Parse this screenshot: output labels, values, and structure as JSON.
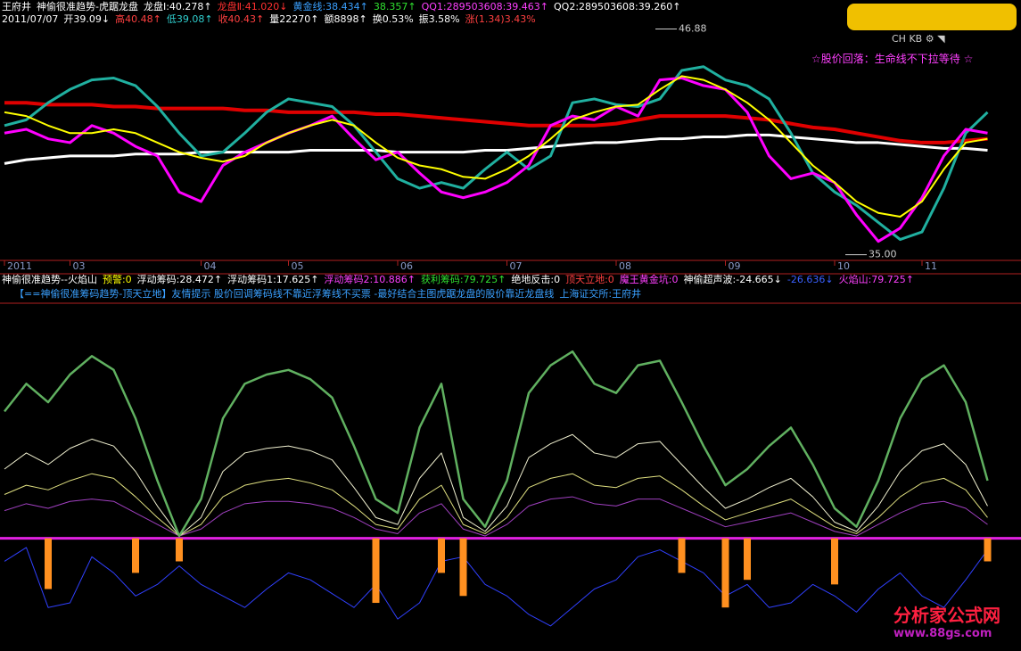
{
  "header": {
    "line1": [
      {
        "text": "王府井",
        "color": "#ffffff"
      },
      {
        "text": "神偷很准趋势-虎踞龙盘",
        "color": "#ffffff"
      },
      {
        "text": "龙盘Ⅰ:40.278↑",
        "color": "#ffffff"
      },
      {
        "text": "龙盘Ⅱ:41.020↓",
        "color": "#ff3030"
      },
      {
        "text": "黄金线:38.434↑",
        "color": "#3aa0ff"
      },
      {
        "text": "38.357↑",
        "color": "#30e030"
      },
      {
        "text": "QQ1:289503608:39.463↑",
        "color": "#ff40ff"
      },
      {
        "text": "QQ2:289503608:39.260↑",
        "color": "#ffffff"
      }
    ],
    "line2": [
      {
        "text": "2011/07/07",
        "color": "#ffffff"
      },
      {
        "text": "开39.09↓",
        "color": "#ffffff"
      },
      {
        "text": "高40.48↑",
        "color": "#ff4040"
      },
      {
        "text": "低39.08↑",
        "color": "#30d0d0"
      },
      {
        "text": "收40.43↑",
        "color": "#ff4040"
      },
      {
        "text": "量22270↑",
        "color": "#ffffff"
      },
      {
        "text": "额8898↑",
        "color": "#ffffff"
      },
      {
        "text": "换0.53%",
        "color": "#ffffff"
      },
      {
        "text": "振3.58%",
        "color": "#ffffff"
      },
      {
        "text": "涨(1.34)3.43%",
        "color": "#ff4040"
      }
    ],
    "main_note": "☆股价回落：生命线不下拉等待 ☆"
  },
  "indicator_header": [
    {
      "text": "神偷很准趋势--火焰山",
      "color": "#ffffff"
    },
    {
      "text": "预警:0",
      "color": "#ffff00"
    },
    {
      "text": "浮动筹码:28.472↑",
      "color": "#ffffff"
    },
    {
      "text": "浮动筹码1:17.625↑",
      "color": "#ffffff"
    },
    {
      "text": "浮动筹码2:10.886↑",
      "color": "#ff40ff"
    },
    {
      "text": "获利筹码:79.725↑",
      "color": "#30e030"
    },
    {
      "text": "绝地反击:0",
      "color": "#ffffff"
    },
    {
      "text": "顶天立地:0",
      "color": "#ff4040"
    },
    {
      "text": "魔王黄金坑:0",
      "color": "#ff40ff"
    },
    {
      "text": "神偷超声波:-24.665↓",
      "color": "#ffffff"
    },
    {
      "text": "-26.636↓",
      "color": "#3a60ff"
    },
    {
      "text": "火焰山:79.725↑",
      "color": "#ff40ff"
    }
  ],
  "notice": [
    {
      "text": "【==神偷很准筹码趋势-顶天立地】友情提示 股价回调筹码线不靠近浮筹线不买票 -最好结合主图虎踞龙盘的股价靠近龙盘线",
      "color": "#3aa0ff"
    },
    {
      "text": "上海证交所:王府井",
      "color": "#3aa0ff"
    }
  ],
  "watermark": {
    "title": "分析家公式网",
    "url": "www.88gs.com"
  },
  "chart_data": [
    {
      "type": "line",
      "categories": [
        "2011",
        null,
        null,
        "03",
        null,
        null,
        null,
        null,
        null,
        "04",
        null,
        null,
        null,
        "05",
        null,
        null,
        null,
        null,
        "06",
        null,
        null,
        null,
        null,
        "07",
        null,
        null,
        null,
        null,
        "08",
        null,
        null,
        null,
        null,
        "09",
        null,
        null,
        null,
        null,
        "10",
        null,
        null,
        null,
        "11",
        null,
        null,
        null
      ],
      "ylim": [
        34.7,
        47.0
      ],
      "annotations": [
        46.88,
        {
          "value": 35,
          "label": "35.00"
        }
      ],
      "series": [
        {
          "color": "#ffffff",
          "values": [
            39.8,
            40.0,
            40.1,
            40.2,
            40.2,
            40.2,
            40.3,
            40.3,
            40.3,
            40.4,
            40.4,
            40.4,
            40.4,
            40.4,
            40.5,
            40.5,
            40.5,
            40.5,
            40.4,
            40.4,
            40.4,
            40.4,
            40.5,
            40.5,
            40.6,
            40.7,
            40.8,
            40.9,
            40.9,
            41.0,
            41.1,
            41.1,
            41.2,
            41.2,
            41.3,
            41.3,
            41.2,
            41.1,
            41.0,
            40.9,
            40.9,
            40.8,
            40.7,
            40.6,
            40.6,
            40.5
          ]
        },
        {
          "color": "#e00000",
          "values": [
            43.0,
            43.0,
            42.9,
            42.9,
            42.9,
            42.8,
            42.8,
            42.7,
            42.7,
            42.7,
            42.7,
            42.6,
            42.6,
            42.5,
            42.5,
            42.5,
            42.5,
            42.4,
            42.4,
            42.3,
            42.2,
            42.1,
            42.0,
            41.9,
            41.8,
            41.8,
            41.8,
            41.8,
            41.9,
            42.1,
            42.3,
            42.3,
            42.3,
            42.3,
            42.2,
            42.1,
            41.9,
            41.7,
            41.6,
            41.4,
            41.2,
            41.0,
            40.9,
            40.9,
            41.0,
            41.1
          ]
        },
        {
          "color": "#20b0a0",
          "values": [
            41.8,
            42.1,
            43.0,
            43.7,
            44.2,
            44.3,
            43.9,
            42.8,
            41.4,
            40.2,
            40.4,
            41.4,
            42.5,
            43.2,
            43.0,
            42.8,
            41.8,
            40.4,
            39.0,
            38.5,
            38.8,
            38.5,
            39.5,
            40.4,
            39.5,
            40.2,
            43.0,
            43.2,
            42.9,
            42.8,
            43.2,
            44.7,
            44.9,
            44.2,
            43.9,
            43.2,
            41.4,
            39.3,
            38.3,
            37.6,
            36.7,
            35.8,
            36.2,
            38.5,
            41.4,
            42.5
          ]
        },
        {
          "color": "#ff00ff",
          "values": [
            41.4,
            41.6,
            41.1,
            40.9,
            41.8,
            41.4,
            40.7,
            40.2,
            38.3,
            37.8,
            39.7,
            40.4,
            40.9,
            41.4,
            41.8,
            42.3,
            41.1,
            40.0,
            40.4,
            39.3,
            38.3,
            38.0,
            38.3,
            38.8,
            39.7,
            41.8,
            42.3,
            42.1,
            42.8,
            42.3,
            44.2,
            44.3,
            43.9,
            43.7,
            42.5,
            40.2,
            39.0,
            39.3,
            38.8,
            37.1,
            35.7,
            36.4,
            38.0,
            40.2,
            41.6,
            41.4
          ]
        },
        {
          "color": "#ffff00",
          "values": [
            42.5,
            42.3,
            41.8,
            41.4,
            41.4,
            41.6,
            41.4,
            40.9,
            40.4,
            40.1,
            39.9,
            40.2,
            40.9,
            41.4,
            41.8,
            42.1,
            41.8,
            40.9,
            40.1,
            39.7,
            39.5,
            39.1,
            39.0,
            39.5,
            40.2,
            41.1,
            42.1,
            42.5,
            42.8,
            42.9,
            43.7,
            44.4,
            44.2,
            43.7,
            43.0,
            42.1,
            40.9,
            39.7,
            38.8,
            37.8,
            37.2,
            37.0,
            37.8,
            39.5,
            40.9,
            41.1
          ]
        }
      ]
    },
    {
      "type": "line",
      "ylim": [
        -45,
        100
      ],
      "series": [
        {
          "color": "#a040c0",
          "values": [
            12,
            15,
            13,
            16,
            17,
            16,
            11,
            6,
            1,
            4,
            11,
            15,
            16,
            16,
            15,
            13,
            9,
            4,
            2,
            11,
            15,
            4,
            1,
            6,
            14,
            17,
            18,
            15,
            14,
            17,
            17,
            13,
            9,
            5,
            7,
            9,
            11,
            7,
            3,
            1,
            6,
            11,
            15,
            16,
            13,
            6
          ]
        },
        {
          "color": "#e0e080",
          "values": [
            19,
            23,
            21,
            25,
            28,
            26,
            18,
            9,
            1,
            6,
            18,
            23,
            25,
            26,
            24,
            21,
            14,
            6,
            4,
            17,
            23,
            6,
            2,
            9,
            22,
            26,
            28,
            23,
            22,
            26,
            27,
            21,
            14,
            8,
            11,
            14,
            17,
            11,
            5,
            2,
            9,
            18,
            24,
            26,
            21,
            9
          ]
        },
        {
          "color": "#f0f0d0",
          "values": [
            30,
            37,
            32,
            39,
            43,
            40,
            29,
            14,
            1,
            9,
            29,
            37,
            39,
            40,
            38,
            34,
            22,
            9,
            6,
            26,
            37,
            9,
            3,
            14,
            35,
            41,
            45,
            37,
            35,
            41,
            42,
            32,
            22,
            13,
            17,
            22,
            26,
            18,
            7,
            3,
            14,
            29,
            38,
            41,
            32,
            14
          ]
        },
        {
          "color": "#60b060",
          "values": [
            55,
            67,
            59,
            71,
            79,
            73,
            52,
            25,
            1,
            17,
            52,
            67,
            71,
            73,
            69,
            61,
            40,
            17,
            11,
            48,
            67,
            17,
            5,
            25,
            63,
            75,
            81,
            67,
            63,
            75,
            77,
            59,
            40,
            23,
            30,
            40,
            48,
            32,
            13,
            5,
            25,
            52,
            69,
            75,
            59,
            25
          ]
        },
        {
          "color": "#3040ff",
          "values": [
            -10,
            -4,
            -30,
            -28,
            -8,
            -15,
            -25,
            -20,
            -12,
            -20,
            -25,
            -30,
            -22,
            -15,
            -18,
            -24,
            -30,
            -20,
            -35,
            -28,
            -10,
            -8,
            -20,
            -25,
            -33,
            -38,
            -30,
            -22,
            -18,
            -8,
            -5,
            -10,
            -15,
            -25,
            -20,
            -30,
            -28,
            -20,
            -25,
            -32,
            -22,
            -15,
            -25,
            -30,
            -18,
            -5
          ]
        },
        {
          "type": "bar",
          "color": "#ff9020",
          "values": [
            null,
            null,
            -22,
            null,
            null,
            null,
            -15,
            null,
            -10,
            null,
            null,
            null,
            null,
            null,
            null,
            null,
            null,
            -28,
            null,
            null,
            -15,
            -25,
            null,
            null,
            null,
            null,
            null,
            null,
            null,
            null,
            null,
            -15,
            null,
            -30,
            -18,
            null,
            null,
            null,
            -20,
            null,
            null,
            null,
            null,
            null,
            null,
            -10
          ]
        }
      ]
    }
  ]
}
